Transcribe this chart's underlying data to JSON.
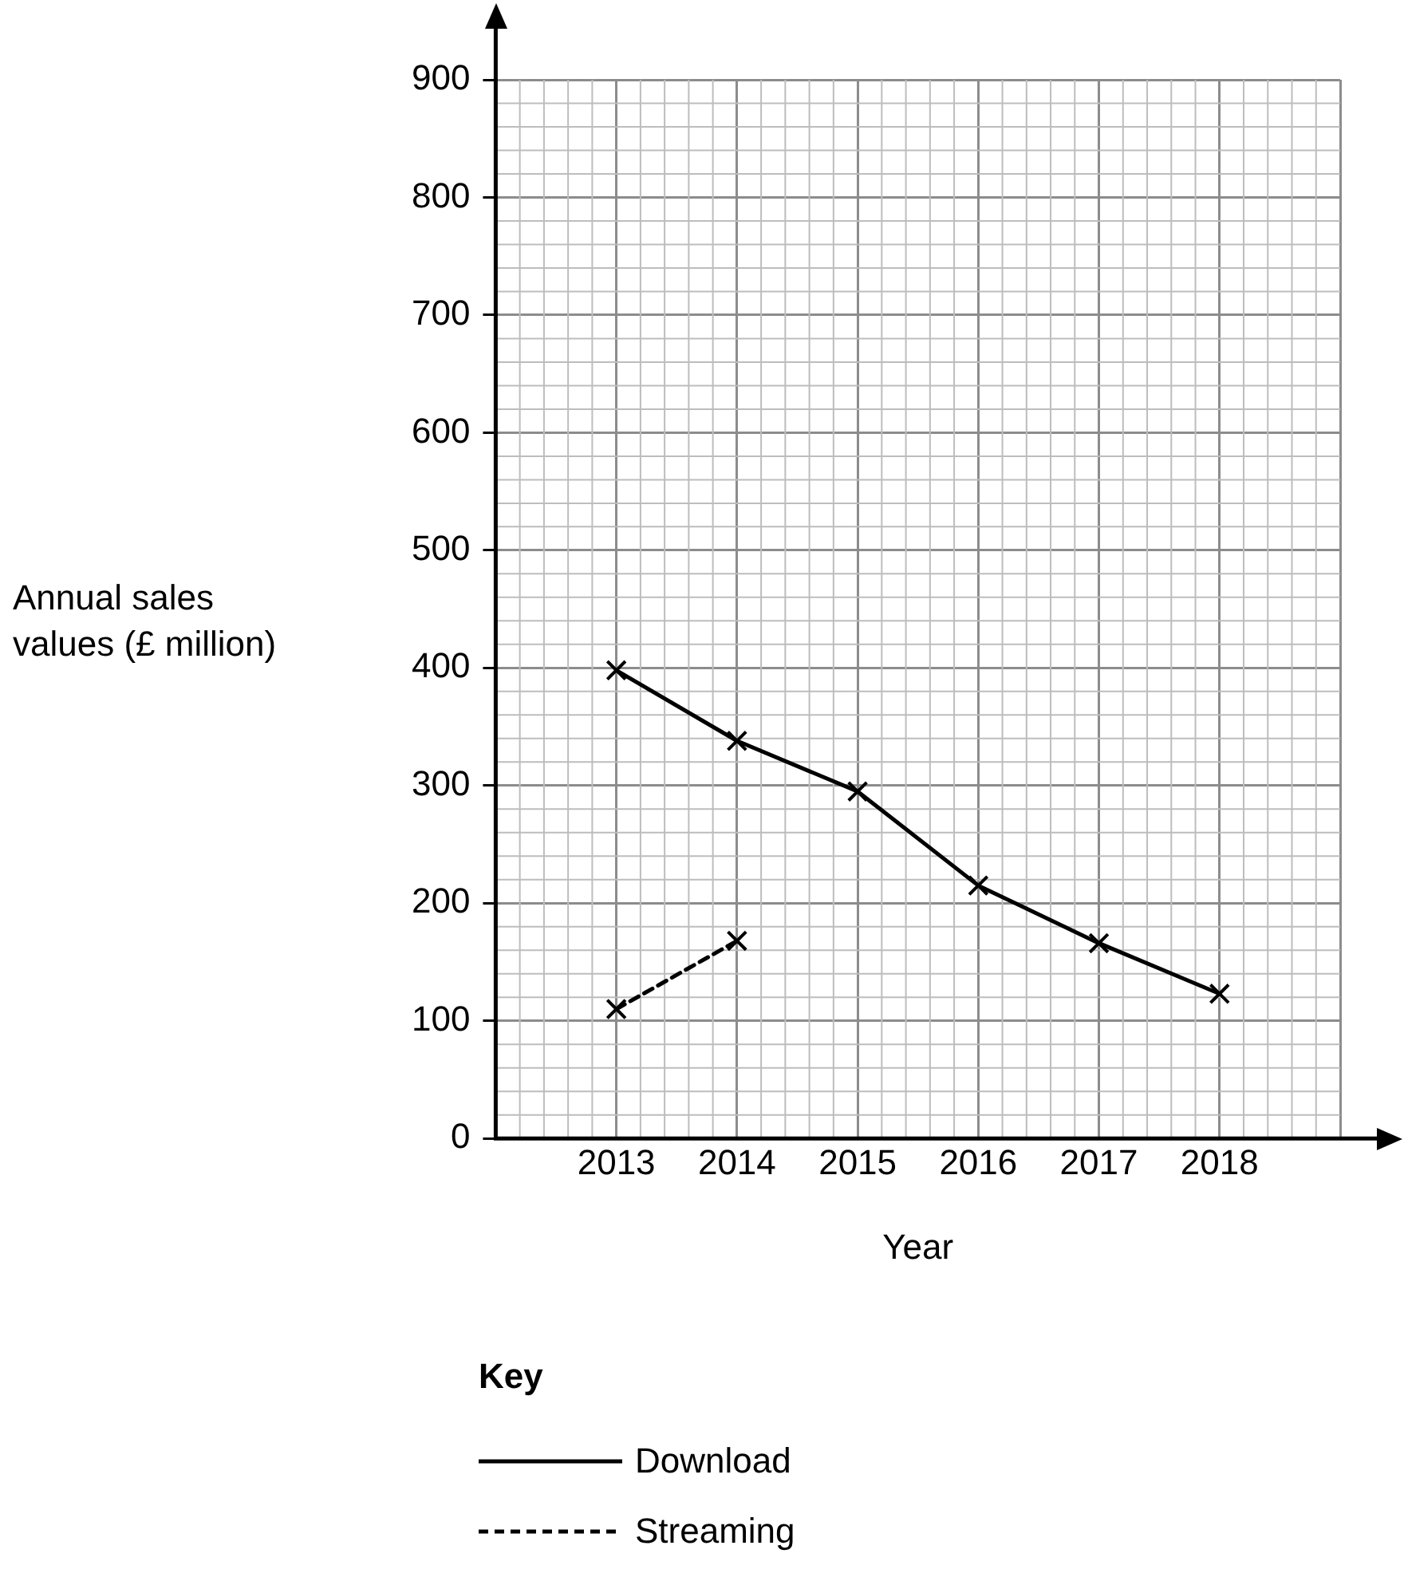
{
  "chart_data": {
    "type": "line",
    "xlabel": "Year",
    "ylabel": "Annual sales\nvalues (£ million)",
    "legend_title": "Key",
    "legend": "bottom",
    "grid": true,
    "marker": "cross",
    "x": [
      2013,
      2014,
      2015,
      2016,
      2017,
      2018
    ],
    "xlim": [
      2012,
      2019
    ],
    "xticks": [
      {
        "value": 2012,
        "label": null
      },
      2013,
      2014,
      2015,
      2016,
      2017,
      2018,
      {
        "value": 2019,
        "label": null
      }
    ],
    "ylim": [
      0,
      900
    ],
    "yticks": [
      0,
      100,
      200,
      300,
      400,
      500,
      600,
      700,
      800,
      900
    ],
    "series": [
      {
        "name": "Download",
        "color": "#000000",
        "line_style": "solid",
        "values": [
          398,
          338,
          295,
          215,
          166,
          123
        ]
      },
      {
        "name": "Streaming",
        "color": "#000000",
        "line_style": "dashed",
        "values": [
          110,
          168,
          null,
          null,
          null,
          null
        ]
      }
    ]
  }
}
